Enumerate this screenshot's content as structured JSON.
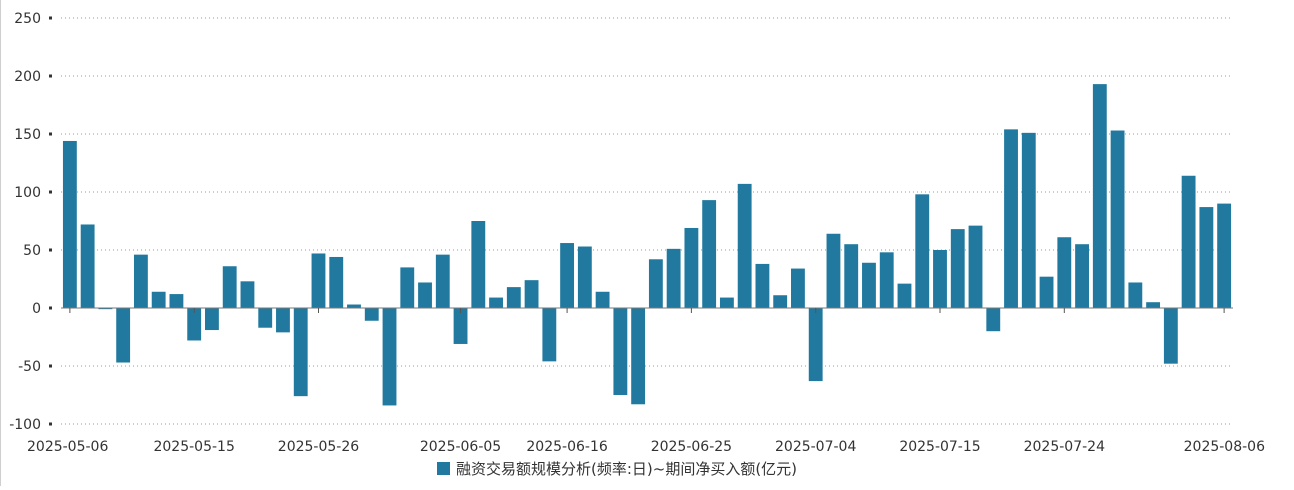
{
  "chart_data": {
    "type": "bar",
    "title": "",
    "xlabel": "",
    "ylabel": "",
    "ylim": [
      -100,
      250
    ],
    "yticks": [
      -100,
      -50,
      0,
      50,
      100,
      150,
      200,
      250
    ],
    "grid": true,
    "legend_position": "bottom-center",
    "bar_color": "#21799f",
    "x_tick_labels": [
      "2025-05-06",
      "2025-05-15",
      "2025-05-26",
      "2025-06-05",
      "2025-06-16",
      "2025-06-25",
      "2025-07-04",
      "2025-07-15",
      "2025-07-24",
      "2025-08-06"
    ],
    "x_tick_indices": [
      0,
      7,
      14,
      22,
      28,
      35,
      42,
      49,
      56,
      65
    ],
    "series": [
      {
        "name": "融资交易额规模分析(频率:日)~期间净买入额(亿元)",
        "values": [
          144,
          72,
          -1,
          -47,
          46,
          14,
          12,
          -28,
          -19,
          36,
          23,
          -17,
          -21,
          -76,
          47,
          44,
          3,
          -11,
          -84,
          35,
          22,
          46,
          -31,
          75,
          9,
          18,
          24,
          -46,
          56,
          53,
          14,
          -75,
          -83,
          42,
          51,
          69,
          93,
          9,
          107,
          38,
          11,
          34,
          -63,
          64,
          55,
          39,
          48,
          21,
          98,
          50,
          68,
          71,
          -20,
          154,
          151,
          27,
          61,
          55,
          193,
          153,
          22,
          5,
          -48,
          114,
          87,
          90
        ]
      }
    ]
  }
}
